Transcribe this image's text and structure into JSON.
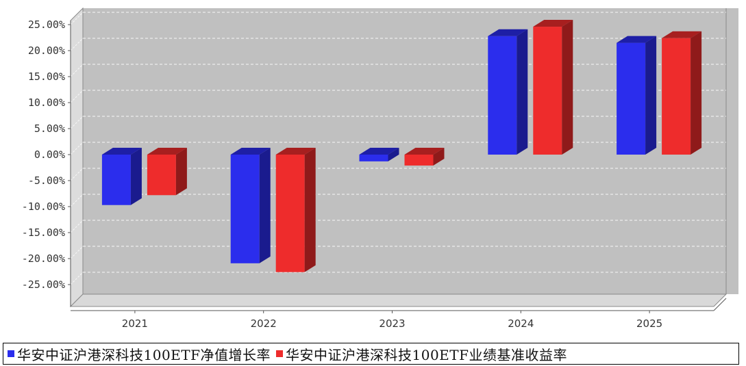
{
  "chart_data": {
    "type": "bar",
    "categories": [
      "2021",
      "2022",
      "2023",
      "2024",
      "2025"
    ],
    "series": [
      {
        "name": "华安中证沪港深科技100ETF净值增长率",
        "color": "#2b2ded",
        "values": [
          -9.7,
          -20.9,
          -1.3,
          22.8,
          21.5
        ]
      },
      {
        "name": "华安中证沪港深科技100ETF业绩基准收益率",
        "color": "#ee2c2c",
        "values": [
          -7.8,
          -22.6,
          -2.1,
          24.6,
          22.4
        ]
      }
    ],
    "yticks": [
      "25.00%",
      "20.00%",
      "15.00%",
      "10.00%",
      "5.00%",
      "0.00%",
      "-5.00%",
      "-10.00%",
      "-15.00%",
      "-20.00%",
      "-25.00%"
    ],
    "ylim": [
      -30,
      27
    ],
    "grid": true,
    "legend_position": "bottom"
  }
}
